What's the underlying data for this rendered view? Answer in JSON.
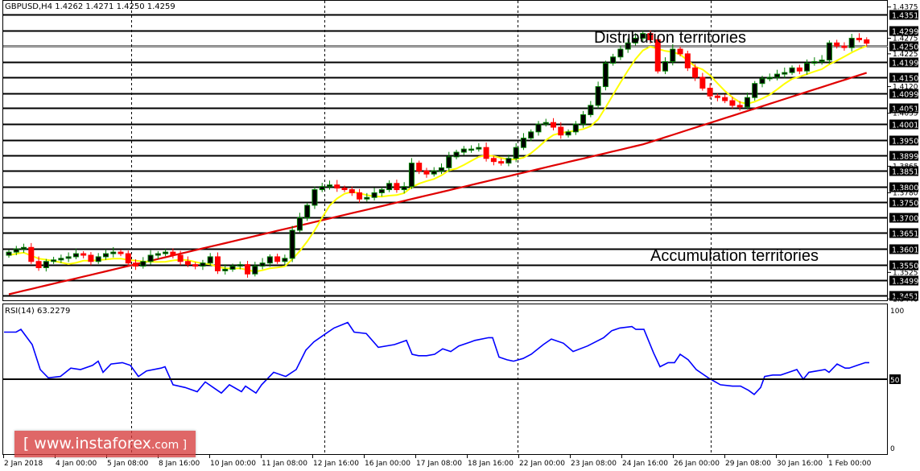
{
  "header": {
    "symbol_line": "GBPUSD,H4  1.4262 1.4271 1.4250 1.4259",
    "symbol": "GBPUSD",
    "timeframe": "H4",
    "open": 1.4262,
    "high": 1.4271,
    "low": 1.425,
    "close": 1.4259
  },
  "annotations": {
    "distribution": "Distribution territories",
    "accumulation": "Accumulation territories"
  },
  "rsi": {
    "label": "RSI(14) 63.2279",
    "axis_labels": [
      "100",
      "50",
      "0"
    ]
  },
  "watermark": {
    "prefix": "[ www.instaforex",
    "suffix": ".com ]"
  },
  "colors": {
    "bull_body": "#000000",
    "bull_border": "#008000",
    "bear_body": "#ff0000",
    "ma_fast": "#ffff00",
    "ma_slow": "#e00000",
    "rsi_line": "#0000ff",
    "level_line": "#000000",
    "price_tag_bg": "#000000",
    "price_tag_fg": "#ffffff"
  },
  "chart_data": {
    "type": "candlestick",
    "title": "GBPUSD,H4 1.4262 1.4271 1.4250 1.4259",
    "xlabel": "",
    "ylabel": "",
    "ylim": [
      1.344,
      1.4375
    ],
    "grid": false,
    "price_axis_top": "1.4375",
    "price_axis_bottom": "1.3440",
    "levels_tagged": [
      "1.4351",
      "1.4299",
      "1.4250",
      "1.4199",
      "1.4150",
      "1.4099",
      "1.4051",
      "1.4001",
      "1.3950",
      "1.3899",
      "1.3851",
      "1.3800",
      "1.3750",
      "1.3700",
      "1.3651",
      "1.3601",
      "1.3550",
      "1.3499",
      "1.3451"
    ],
    "axis_ticks_minor": [
      "1.4375",
      "1.4275",
      "1.4225",
      "1.4120",
      "1.4035",
      "1.3865",
      "1.3780",
      "1.3525",
      "1.3440"
    ],
    "x_tick_labels": [
      "2 Jan 2018",
      "4 Jan 00:00",
      "5 Jan 08:00",
      "8 Jan 16:00",
      "10 Jan 00:00",
      "11 Jan 08:00",
      "12 Jan 16:00",
      "16 Jan 00:00",
      "17 Jan 08:00",
      "18 Jan 16:00",
      "22 Jan 00:00",
      "23 Jan 08:00",
      "24 Jan 16:00",
      "26 Jan 00:00",
      "29 Jan 08:00",
      "30 Jan 16:00",
      "1 Feb 00:00"
    ],
    "series": [
      {
        "name": "MA fast (yellow)",
        "type": "line",
        "color": "#ffff00"
      },
      {
        "name": "MA slow (red)",
        "type": "line",
        "color": "#e00000"
      },
      {
        "name": "RSI(14)",
        "type": "line",
        "color": "#0000ff",
        "last": 63.2279,
        "ylim": [
          0,
          100
        ],
        "reference_level": 50
      }
    ],
    "candles_close_approx": [
      1.359,
      1.36,
      1.3605,
      1.356,
      1.354,
      1.356,
      1.3565,
      1.357,
      1.3575,
      1.3585,
      1.358,
      1.356,
      1.3575,
      1.3585,
      1.359,
      1.3585,
      1.3555,
      1.3545,
      1.356,
      1.358,
      1.3585,
      1.359,
      1.358,
      1.356,
      1.355,
      1.3545,
      1.3555,
      1.3575,
      1.353,
      1.3535,
      1.3545,
      1.355,
      1.352,
      1.3545,
      1.3555,
      1.3575,
      1.356,
      1.357,
      1.366,
      1.37,
      1.374,
      1.379,
      1.38,
      1.3805,
      1.3795,
      1.379,
      1.378,
      1.376,
      1.3765,
      1.378,
      1.379,
      1.381,
      1.379,
      1.38,
      1.3875,
      1.385,
      1.384,
      1.385,
      1.386,
      1.3895,
      1.391,
      1.392,
      1.392,
      1.3925,
      1.389,
      1.388,
      1.3875,
      1.389,
      1.3925,
      1.3955,
      1.3975,
      1.4,
      1.4005,
      1.399,
      1.3965,
      1.3975,
      1.4,
      1.403,
      1.406,
      1.412,
      1.4195,
      1.4215,
      1.424,
      1.426,
      1.4275,
      1.429,
      1.427,
      1.417,
      1.42,
      1.424,
      1.4225,
      1.418,
      1.415,
      1.4115,
      1.409,
      1.4085,
      1.4075,
      1.406,
      1.4055,
      1.4085,
      1.413,
      1.4145,
      1.415,
      1.416,
      1.4165,
      1.418,
      1.417,
      1.4195,
      1.42,
      1.4205,
      1.426,
      1.425,
      1.4245,
      1.4275,
      1.427,
      1.4259
    ]
  }
}
